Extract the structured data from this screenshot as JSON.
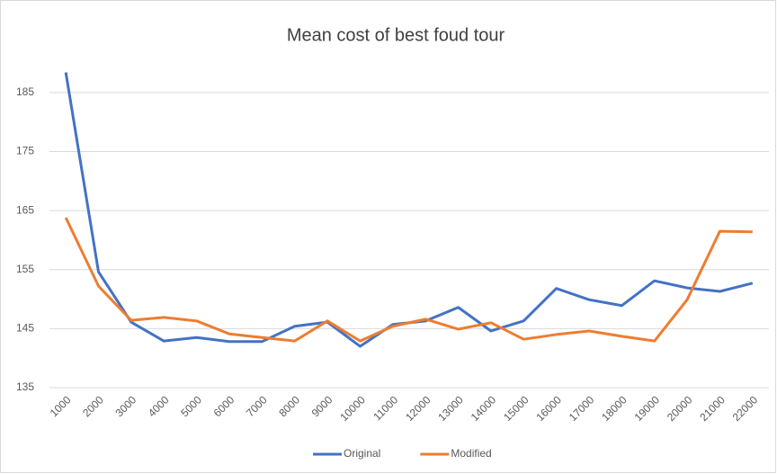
{
  "chart_data": {
    "type": "line",
    "title": "Mean cost of best foud tour",
    "categories": [
      "1000",
      "2000",
      "3000",
      "4000",
      "5000",
      "6000",
      "7000",
      "8000",
      "9000",
      "10000",
      "11000",
      "12000",
      "13000",
      "14000",
      "15000",
      "16000",
      "17000",
      "18000",
      "19000",
      "20000",
      "21000",
      "22000"
    ],
    "series": [
      {
        "name": "Original",
        "color": "#4472c4",
        "values": [
          188.4,
          154.6,
          146.1,
          142.9,
          143.5,
          142.8,
          142.8,
          145.4,
          146.1,
          142.0,
          145.7,
          146.3,
          148.6,
          144.6,
          146.3,
          151.8,
          149.9,
          148.9,
          153.1,
          151.9,
          151.3,
          152.7
        ]
      },
      {
        "name": "Modified",
        "color": "#ed7d31",
        "values": [
          163.8,
          152.2,
          146.4,
          146.9,
          146.3,
          144.1,
          143.5,
          142.9,
          146.3,
          142.9,
          145.4,
          146.6,
          144.9,
          146.0,
          143.2,
          144.0,
          144.6,
          143.7,
          142.9,
          149.9,
          161.5,
          161.4
        ]
      }
    ],
    "ylim": [
      135,
      190
    ],
    "yticks": [
      135,
      145,
      155,
      165,
      175,
      185
    ],
    "grid": true,
    "legend": "bottom"
  }
}
